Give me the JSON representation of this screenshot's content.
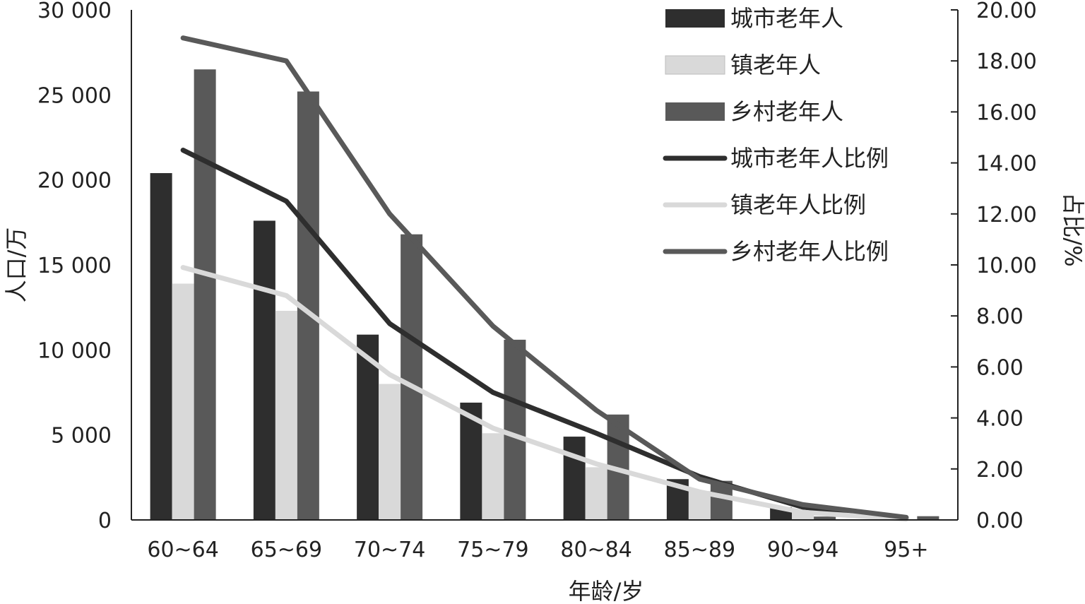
{
  "chart_data": {
    "type": "bar",
    "xlabel": "年龄/岁",
    "ylabel_left": "人口/万",
    "ylabel_right": "占比/%",
    "ylim_left": [
      0,
      30000
    ],
    "ylim_right": [
      0,
      20
    ],
    "left_ticks": [
      "0",
      "5 000",
      "10 000",
      "15 000",
      "20 000",
      "25 000",
      "30 000"
    ],
    "right_ticks": [
      "0.00",
      "2.00",
      "4.00",
      "6.00",
      "8.00",
      "10.00",
      "12.00",
      "14.00",
      "16.00",
      "18.00",
      "20.00"
    ],
    "categories": [
      "60~64",
      "65~69",
      "70~74",
      "75~79",
      "80~84",
      "85~89",
      "90~94",
      "95+"
    ],
    "bar_series": [
      {
        "name": "城市老年人",
        "color": "#2e2e2e",
        "values": [
          20400,
          17600,
          10900,
          6900,
          4900,
          2400,
          750,
          80
        ]
      },
      {
        "name": "镇老年人",
        "color": "#d9d9d9",
        "values": [
          13900,
          12300,
          8000,
          5100,
          3100,
          1700,
          520,
          50
        ]
      },
      {
        "name": "乡村老年人",
        "color": "#595959",
        "values": [
          26500,
          25200,
          16800,
          10600,
          6200,
          2300,
          200,
          220
        ]
      }
    ],
    "line_series": [
      {
        "name": "城市老年人比例",
        "color": "#2e2e2e",
        "values": [
          14.5,
          12.5,
          7.7,
          5.0,
          3.4,
          1.7,
          0.5,
          0.05
        ]
      },
      {
        "name": "镇老年人比例",
        "color": "#d9d9d9",
        "values": [
          9.9,
          8.8,
          5.7,
          3.6,
          2.2,
          1.1,
          0.3,
          0.03
        ]
      },
      {
        "name": "乡村老年人比例",
        "color": "#595959",
        "values": [
          18.9,
          18.0,
          12.0,
          7.6,
          4.3,
          1.6,
          0.6,
          0.1
        ]
      }
    ],
    "legend_position": "top-right"
  }
}
